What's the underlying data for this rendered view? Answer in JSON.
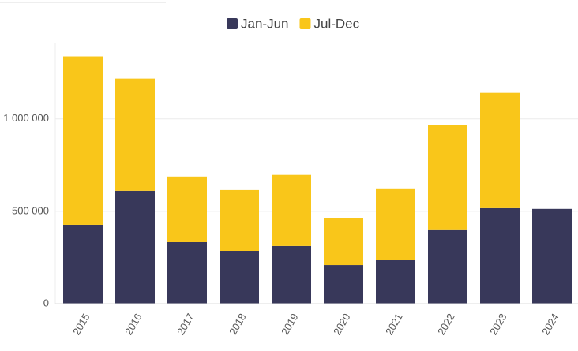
{
  "chart_data": {
    "type": "stacked_bar",
    "categories": [
      "2015",
      "2016",
      "2017",
      "2018",
      "2019",
      "2020",
      "2021",
      "2022",
      "2023",
      "2024"
    ],
    "series": [
      {
        "name": "Jan-Jun",
        "color": "#38385a",
        "values": [
          427000,
          611000,
          333000,
          286000,
          312000,
          209000,
          239000,
          402000,
          517000,
          513000
        ]
      },
      {
        "name": "Jul-Dec",
        "color": "#f9c61a",
        "values": [
          911000,
          607000,
          355000,
          329000,
          385000,
          253000,
          385000,
          564000,
          624000,
          null
        ]
      }
    ],
    "ylim": [
      0,
      1400000
    ],
    "yticks": [
      0,
      {
        "value": 500000,
        "label": "500 000"
      },
      {
        "value": 1000000,
        "label": "1 000 000"
      }
    ],
    "grid": true,
    "legend": "top"
  }
}
